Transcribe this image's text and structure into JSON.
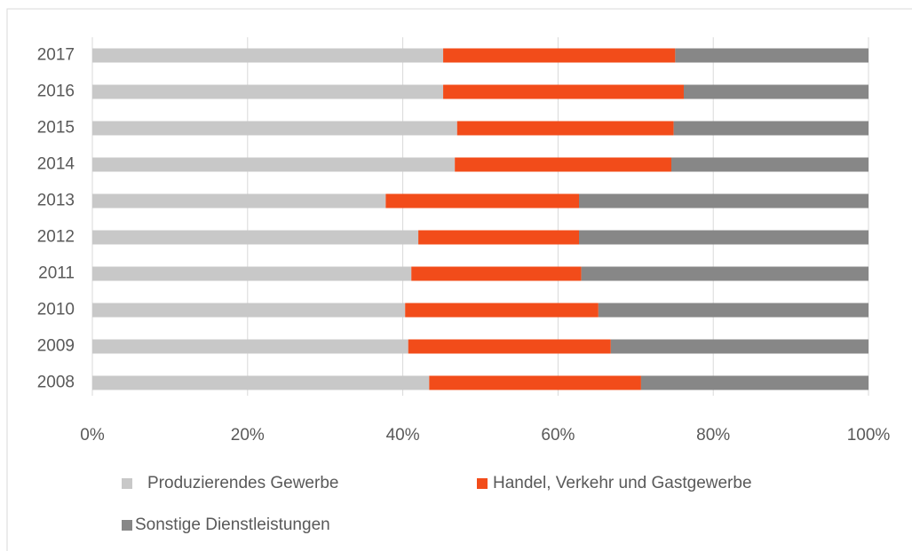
{
  "chart_data": {
    "type": "stacked-bar-horizontal",
    "categories": [
      "2008",
      "2009",
      "2010",
      "2011",
      "2012",
      "2013",
      "2014",
      "2015",
      "2016",
      "2017"
    ],
    "series": [
      {
        "name": "Produzierendes Gewerbe",
        "color": "#c8c8c8",
        "values": [
          43.4,
          40.7,
          40.3,
          41.1,
          42.0,
          37.8,
          46.7,
          47.0,
          45.2,
          45.2
        ]
      },
      {
        "name": "Handel, Verkehr und Gastgewerbe",
        "color": "#f24c1a",
        "values": [
          27.3,
          26.1,
          24.9,
          21.9,
          20.7,
          24.9,
          27.9,
          27.9,
          31.0,
          29.9
        ]
      },
      {
        "name": "Sonstige Dienstleistungen",
        "color": "#878787",
        "values": [
          29.3,
          33.2,
          34.8,
          37.0,
          37.3,
          37.3,
          25.4,
          25.1,
          23.8,
          24.9
        ]
      }
    ],
    "xlim": [
      0,
      100
    ],
    "xticks": [
      {
        "value": 0,
        "label": "0%"
      },
      {
        "value": 20,
        "label": "20%"
      },
      {
        "value": 40,
        "label": "40%"
      },
      {
        "value": 60,
        "label": "60%"
      },
      {
        "value": 80,
        "label": "80%"
      },
      {
        "value": 100,
        "label": "100%"
      }
    ],
    "grid": true
  }
}
